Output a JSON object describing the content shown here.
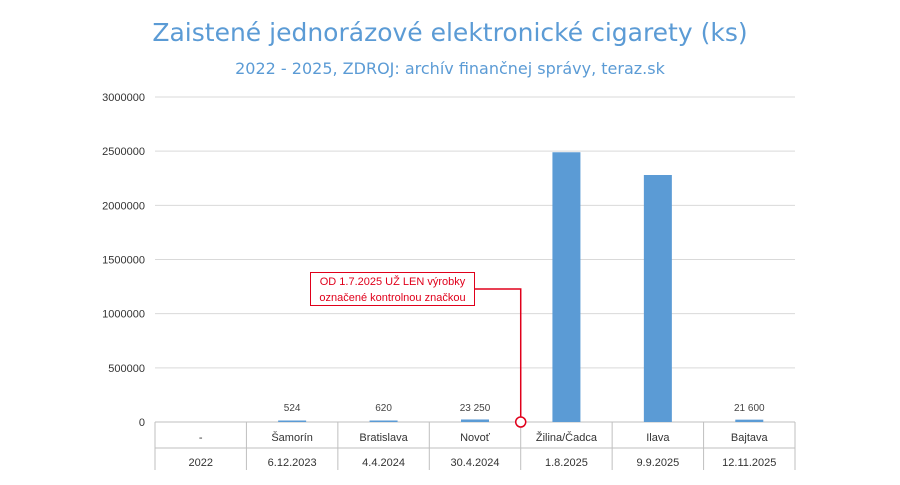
{
  "chart_data": {
    "type": "bar",
    "title": "Zaistené jednorázové elektronické cigarety (ks)",
    "subtitle": "2022 - 2025, ZDROJ: archív finančnej správy, teraz.sk",
    "categories": [
      "-",
      "Šamorín",
      "Bratislava",
      "Novoť",
      "Žilina/Čadca",
      "Ilava",
      "Bajtava"
    ],
    "dates": [
      "2022",
      "6.12.2023",
      "4.4.2024",
      "30.4.2024",
      "1.8.2025",
      "9.9.2025",
      "12.11.2025"
    ],
    "values": [
      0,
      524,
      620,
      23250,
      2490000,
      2280000,
      21600
    ],
    "data_labels": [
      "",
      "524",
      "620",
      "23 250",
      "",
      "",
      "21 600"
    ],
    "yticks": [
      "0",
      "500000",
      "1000000",
      "1500000",
      "2000000",
      "2500000",
      "3000000"
    ],
    "ylim": [
      0,
      3000000
    ],
    "grid": true,
    "bar_color": "#5b9bd5",
    "annotation": {
      "line1": "OD 1.7.2025 UŽ LEN výrobky",
      "line2": "označené kontrolnou značkou",
      "color": "#e0001b"
    }
  }
}
